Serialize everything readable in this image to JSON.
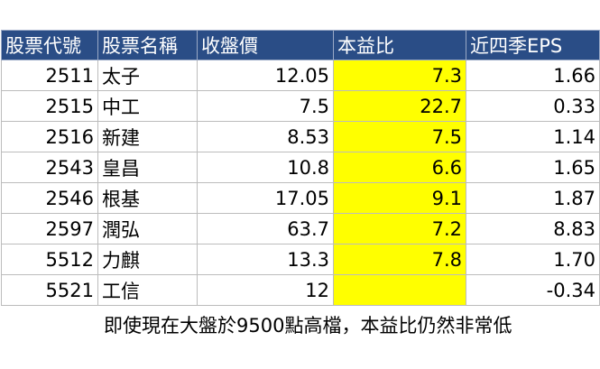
{
  "table": {
    "headers": [
      "股票代號",
      "股票名稱",
      "收盤價",
      "本益比",
      "近四季EPS"
    ],
    "rows": [
      {
        "code": "2511",
        "name": "太子",
        "close": "12.05",
        "pe": "7.3",
        "eps": "1.66"
      },
      {
        "code": "2515",
        "name": "中工",
        "close": "7.5",
        "pe": "22.7",
        "eps": "0.33"
      },
      {
        "code": "2516",
        "name": "新建",
        "close": "8.53",
        "pe": "7.5",
        "eps": "1.14"
      },
      {
        "code": "2543",
        "name": "皇昌",
        "close": "10.8",
        "pe": "6.6",
        "eps": "1.65"
      },
      {
        "code": "2546",
        "name": "根基",
        "close": "17.05",
        "pe": "9.1",
        "eps": "1.87"
      },
      {
        "code": "2597",
        "name": "潤弘",
        "close": "63.7",
        "pe": "7.2",
        "eps": "8.83"
      },
      {
        "code": "5512",
        "name": "力麒",
        "close": "13.3",
        "pe": "7.8",
        "eps": "1.70"
      },
      {
        "code": "5521",
        "name": "工信",
        "close": "12",
        "pe": "",
        "eps": "-0.34"
      }
    ]
  },
  "caption": "即使現在大盤於9500點高檔，本益比仍然非常低",
  "colors": {
    "header_bg": "#2a4d86",
    "header_text": "#ffffff",
    "pe_highlight": "#ffff00",
    "grid": "#bcbcbc"
  }
}
